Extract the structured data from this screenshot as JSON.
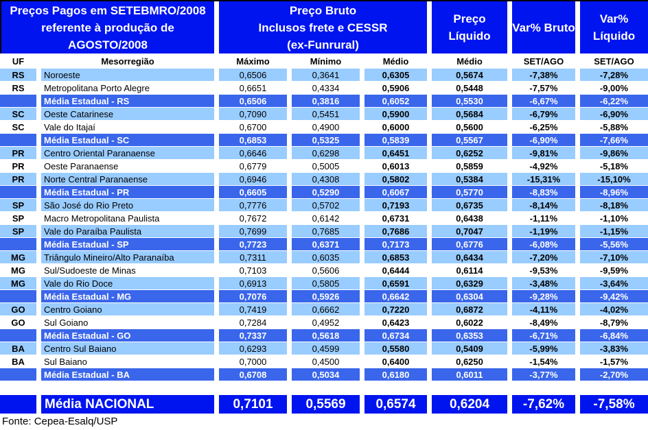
{
  "header": {
    "title_lines": [
      "Preços Pagos em SETEBMRO/2008",
      "referente à produção de",
      "AGOSTO/2008"
    ],
    "preco_bruto_lines": [
      "Preço Bruto",
      "Inclusos frete e CESSR",
      "(ex-Funrural)"
    ],
    "preco_liquido": "Preço Líquido",
    "var_bruto": "Var% Bruto",
    "var_liquido": "Var% Líquido"
  },
  "subheader": {
    "uf": "UF",
    "mesorregiao": "Mesorregião",
    "maximo": "Máximo",
    "minimo": "Mínimo",
    "medio_bruto": "Médio",
    "medio_liquido": "Médio",
    "set_ago_bruto": "SET/AGO",
    "set_ago_liquido": "SET/AGO"
  },
  "rows": [
    {
      "kind": "light",
      "uf": "RS",
      "name": "Noroeste",
      "max": "0,6506",
      "min": "0,3641",
      "medio_bruto": "0,6305",
      "medio_liquido": "0,5674",
      "var_bruto": "-7,38%",
      "var_liquido": "-7,28%"
    },
    {
      "kind": "white",
      "uf": "RS",
      "name": "Metropolitana Porto Alegre",
      "max": "0,6651",
      "min": "0,4334",
      "medio_bruto": "0,5906",
      "medio_liquido": "0,5448",
      "var_bruto": "-7,57%",
      "var_liquido": "-9,00%"
    },
    {
      "kind": "medium",
      "uf": "",
      "name": "Média Estadual - RS",
      "max": "0,6506",
      "min": "0,3816",
      "medio_bruto": "0,6052",
      "medio_liquido": "0,5530",
      "var_bruto": "-6,67%",
      "var_liquido": "-6,22%"
    },
    {
      "kind": "light",
      "uf": "SC",
      "name": "Oeste Catarinese",
      "max": "0,7090",
      "min": "0,5451",
      "medio_bruto": "0,5900",
      "medio_liquido": "0,5684",
      "var_bruto": "-6,79%",
      "var_liquido": "-6,90%"
    },
    {
      "kind": "white",
      "uf": "SC",
      "name": "Vale do Itajaí",
      "max": "0,6700",
      "min": "0,4900",
      "medio_bruto": "0,6000",
      "medio_liquido": "0,5600",
      "var_bruto": "-6,25%",
      "var_liquido": "-5,88%"
    },
    {
      "kind": "medium",
      "uf": "",
      "name": "Média Estadual - SC",
      "max": "0,6853",
      "min": "0,5325",
      "medio_bruto": "0,5839",
      "medio_liquido": "0,5567",
      "var_bruto": "-6,90%",
      "var_liquido": "-7,66%"
    },
    {
      "kind": "light",
      "uf": "PR",
      "name": "Centro Oriental Paranaense",
      "max": "0,6646",
      "min": "0,6298",
      "medio_bruto": "0,6451",
      "medio_liquido": "0,6252",
      "var_bruto": "-9,81%",
      "var_liquido": "-9,86%"
    },
    {
      "kind": "white",
      "uf": "PR",
      "name": "Oeste Paranaense",
      "max": "0,6779",
      "min": "0,5005",
      "medio_bruto": "0,6013",
      "medio_liquido": "0,5859",
      "var_bruto": "-4,92%",
      "var_liquido": "-5,18%"
    },
    {
      "kind": "light",
      "uf": "PR",
      "name": "Norte Central Paranaense",
      "max": "0,6946",
      "min": "0,4308",
      "medio_bruto": "0,5802",
      "medio_liquido": "0,5384",
      "var_bruto": "-15,31%",
      "var_liquido": "-15,10%"
    },
    {
      "kind": "medium",
      "uf": "",
      "name": "Média Estadual - PR",
      "max": "0,6605",
      "min": "0,5290",
      "medio_bruto": "0,6067",
      "medio_liquido": "0,5770",
      "var_bruto": "-8,83%",
      "var_liquido": "-8,96%"
    },
    {
      "kind": "light",
      "uf": "SP",
      "name": "São José do Rio Preto",
      "max": "0,7776",
      "min": "0,5702",
      "medio_bruto": "0,7193",
      "medio_liquido": "0,6735",
      "var_bruto": "-8,14%",
      "var_liquido": "-8,18%"
    },
    {
      "kind": "white",
      "uf": "SP",
      "name": "Macro Metropolitana Paulista",
      "max": "0,7672",
      "min": "0,6142",
      "medio_bruto": "0,6731",
      "medio_liquido": "0,6438",
      "var_bruto": "-1,11%",
      "var_liquido": "-1,10%"
    },
    {
      "kind": "light",
      "uf": "SP",
      "name": "Vale do Paraíba Paulista",
      "max": "0,7699",
      "min": "0,7685",
      "medio_bruto": "0,7686",
      "medio_liquido": "0,7047",
      "var_bruto": "-1,19%",
      "var_liquido": "-1,15%"
    },
    {
      "kind": "medium",
      "uf": "",
      "name": "Média Estadual - SP",
      "max": "0,7723",
      "min": "0,6371",
      "medio_bruto": "0,7173",
      "medio_liquido": "0,6776",
      "var_bruto": "-6,08%",
      "var_liquido": "-5,56%"
    },
    {
      "kind": "light",
      "uf": "MG",
      "name": "Triângulo Mineiro/Alto Paranaíba",
      "max": "0,7311",
      "min": "0,6035",
      "medio_bruto": "0,6853",
      "medio_liquido": "0,6434",
      "var_bruto": "-7,20%",
      "var_liquido": "-7,10%"
    },
    {
      "kind": "white",
      "uf": "MG",
      "name": "Sul/Sudoeste de Minas",
      "max": "0,7103",
      "min": "0,5606",
      "medio_bruto": "0,6444",
      "medio_liquido": "0,6114",
      "var_bruto": "-9,53%",
      "var_liquido": "-9,59%"
    },
    {
      "kind": "light",
      "uf": "MG",
      "name": "Vale do Rio Doce",
      "max": "0,6913",
      "min": "0,5805",
      "medio_bruto": "0,6591",
      "medio_liquido": "0,6329",
      "var_bruto": "-3,48%",
      "var_liquido": "-3,64%"
    },
    {
      "kind": "medium",
      "uf": "",
      "name": "Média Estadual - MG",
      "max": "0,7076",
      "min": "0,5926",
      "medio_bruto": "0,6642",
      "medio_liquido": "0,6304",
      "var_bruto": "-9,28%",
      "var_liquido": "-9,42%"
    },
    {
      "kind": "light",
      "uf": "GO",
      "name": "Centro Goiano",
      "max": "0,7419",
      "min": "0,6662",
      "medio_bruto": "0,7220",
      "medio_liquido": "0,6872",
      "var_bruto": "-4,11%",
      "var_liquido": "-4,02%"
    },
    {
      "kind": "white",
      "uf": "GO",
      "name": "Sul Goiano",
      "max": "0,7284",
      "min": "0,4952",
      "medio_bruto": "0,6423",
      "medio_liquido": "0,6022",
      "var_bruto": "-8,49%",
      "var_liquido": "-8,79%"
    },
    {
      "kind": "medium",
      "uf": "",
      "name": "Média Estadual - GO",
      "max": "0,7337",
      "min": "0,5618",
      "medio_bruto": "0,6734",
      "medio_liquido": "0,6353",
      "var_bruto": "-6,71%",
      "var_liquido": "-6,84%"
    },
    {
      "kind": "light",
      "uf": "BA",
      "name": "Centro Sul Baiano",
      "max": "0,6293",
      "min": "0,4599",
      "medio_bruto": "0,5580",
      "medio_liquido": "0,5409",
      "var_bruto": "-5,99%",
      "var_liquido": "-3,83%"
    },
    {
      "kind": "white",
      "uf": "BA",
      "name": "Sul Baiano",
      "max": "0,7000",
      "min": "0,4500",
      "medio_bruto": "0,6400",
      "medio_liquido": "0,6250",
      "var_bruto": "-1,54%",
      "var_liquido": "-1,57%"
    },
    {
      "kind": "medium",
      "uf": "",
      "name": "Média Estadual - BA",
      "max": "0,6708",
      "min": "0,5034",
      "medio_bruto": "0,6180",
      "medio_liquido": "0,6011",
      "var_bruto": "-3,77%",
      "var_liquido": "-2,70%"
    }
  ],
  "national": {
    "label": "Média NACIONAL",
    "max": "0,7101",
    "min": "0,5569",
    "medio_bruto": "0,6574",
    "medio_liquido": "0,6204",
    "var_bruto": "-7,62%",
    "var_liquido": "-7,58%"
  },
  "footer": {
    "fonte": "Fonte: Cepea-Esalq/USP"
  },
  "colors": {
    "header_blue": "#0014f0",
    "medium_blue": "#3a66eb",
    "light_blue": "#99ccff",
    "text_light": "#ffffff",
    "text_dark": "#000000"
  }
}
